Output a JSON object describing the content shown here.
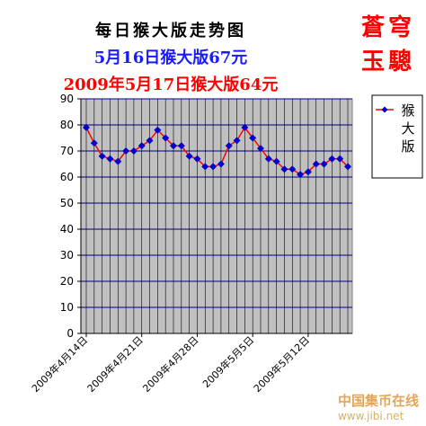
{
  "header": {
    "title": "每日猴大版走势图",
    "sub1": "5月16日猴大版67元",
    "sub2": "2009年5月17日猴大版64元",
    "brand1": "蒼穹",
    "brand2": "玉驄"
  },
  "watermark": {
    "name": "中国集币在线",
    "url": "www.jibi.net"
  },
  "chart_data": {
    "type": "line",
    "title": "每日猴大版走势图",
    "ylim": [
      0,
      90
    ],
    "y_ticks": [
      "0",
      "10",
      "20",
      "30",
      "40",
      "50",
      "60",
      "70",
      "80",
      "90"
    ],
    "x_ticks": [
      "2009年4月14日",
      "2009年4月21日",
      "2009年4月28日",
      "2009年5月5日",
      "2009年5月12日"
    ],
    "grid": "horizontal",
    "legend_position": "right",
    "series": [
      {
        "name": "猴大版",
        "color": "#0000cc",
        "line_color": "#ff0000",
        "x": [
          "2009-04-14",
          "2009-04-15",
          "2009-04-16",
          "2009-04-17",
          "2009-04-18",
          "2009-04-19",
          "2009-04-20",
          "2009-04-21",
          "2009-04-22",
          "2009-04-23",
          "2009-04-24",
          "2009-04-25",
          "2009-04-26",
          "2009-04-27",
          "2009-04-28",
          "2009-04-29",
          "2009-04-30",
          "2009-05-01",
          "2009-05-02",
          "2009-05-03",
          "2009-05-04",
          "2009-05-05",
          "2009-05-06",
          "2009-05-07",
          "2009-05-08",
          "2009-05-09",
          "2009-05-10",
          "2009-05-11",
          "2009-05-12",
          "2009-05-13",
          "2009-05-14",
          "2009-05-15",
          "2009-05-16",
          "2009-05-17"
        ],
        "values": [
          79,
          73,
          68,
          67,
          66,
          70,
          70,
          72,
          74,
          78,
          75,
          72,
          72,
          68,
          67,
          64,
          64,
          65,
          72,
          74,
          79,
          75,
          71,
          67,
          66,
          63,
          63,
          61,
          62,
          65,
          65,
          67,
          67,
          64
        ]
      }
    ]
  }
}
